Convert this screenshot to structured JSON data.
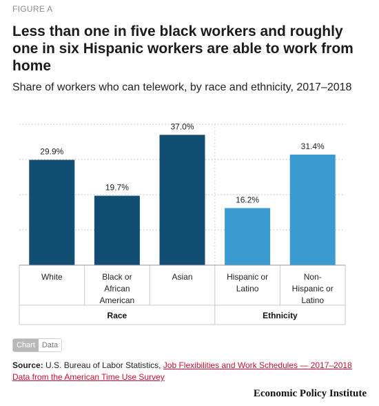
{
  "figure_label": "FIGURE A",
  "title": "Less than one in five black workers and roughly one in six Hispanic workers are able to work from home",
  "subtitle": "Share of workers who can telework, by race and ethnicity, 2017–2018",
  "toggle": {
    "chart": "Chart",
    "data": "Data"
  },
  "source": {
    "label": "Source:",
    "text": "U.S. Bureau of Labor Statistics,",
    "link": "Job Flexibilities and Work Schedules — 2017–2018 Data from the American Time Use Survey"
  },
  "brand": "Economic Policy Institute",
  "colors": {
    "race": "#124e73",
    "ethnicity": "#3a9bd0"
  },
  "chart_data": {
    "type": "bar",
    "ylim": [
      0,
      40
    ],
    "grid": true,
    "groups": [
      {
        "name": "Race",
        "color": "#124e73",
        "categories": [
          [
            "White"
          ],
          [
            "Black or",
            "African",
            "American"
          ],
          [
            "Asian"
          ]
        ],
        "values": [
          29.9,
          19.7,
          37.0
        ],
        "labels": [
          "29.9%",
          "19.7%",
          "37.0%"
        ]
      },
      {
        "name": "Ethnicity",
        "color": "#3a9bd0",
        "categories": [
          [
            "Hispanic or",
            "Latino"
          ],
          [
            "Non-",
            "Hispanic or",
            "Latino"
          ]
        ],
        "values": [
          16.2,
          31.4
        ],
        "labels": [
          "16.2%",
          "31.4%"
        ]
      }
    ]
  }
}
